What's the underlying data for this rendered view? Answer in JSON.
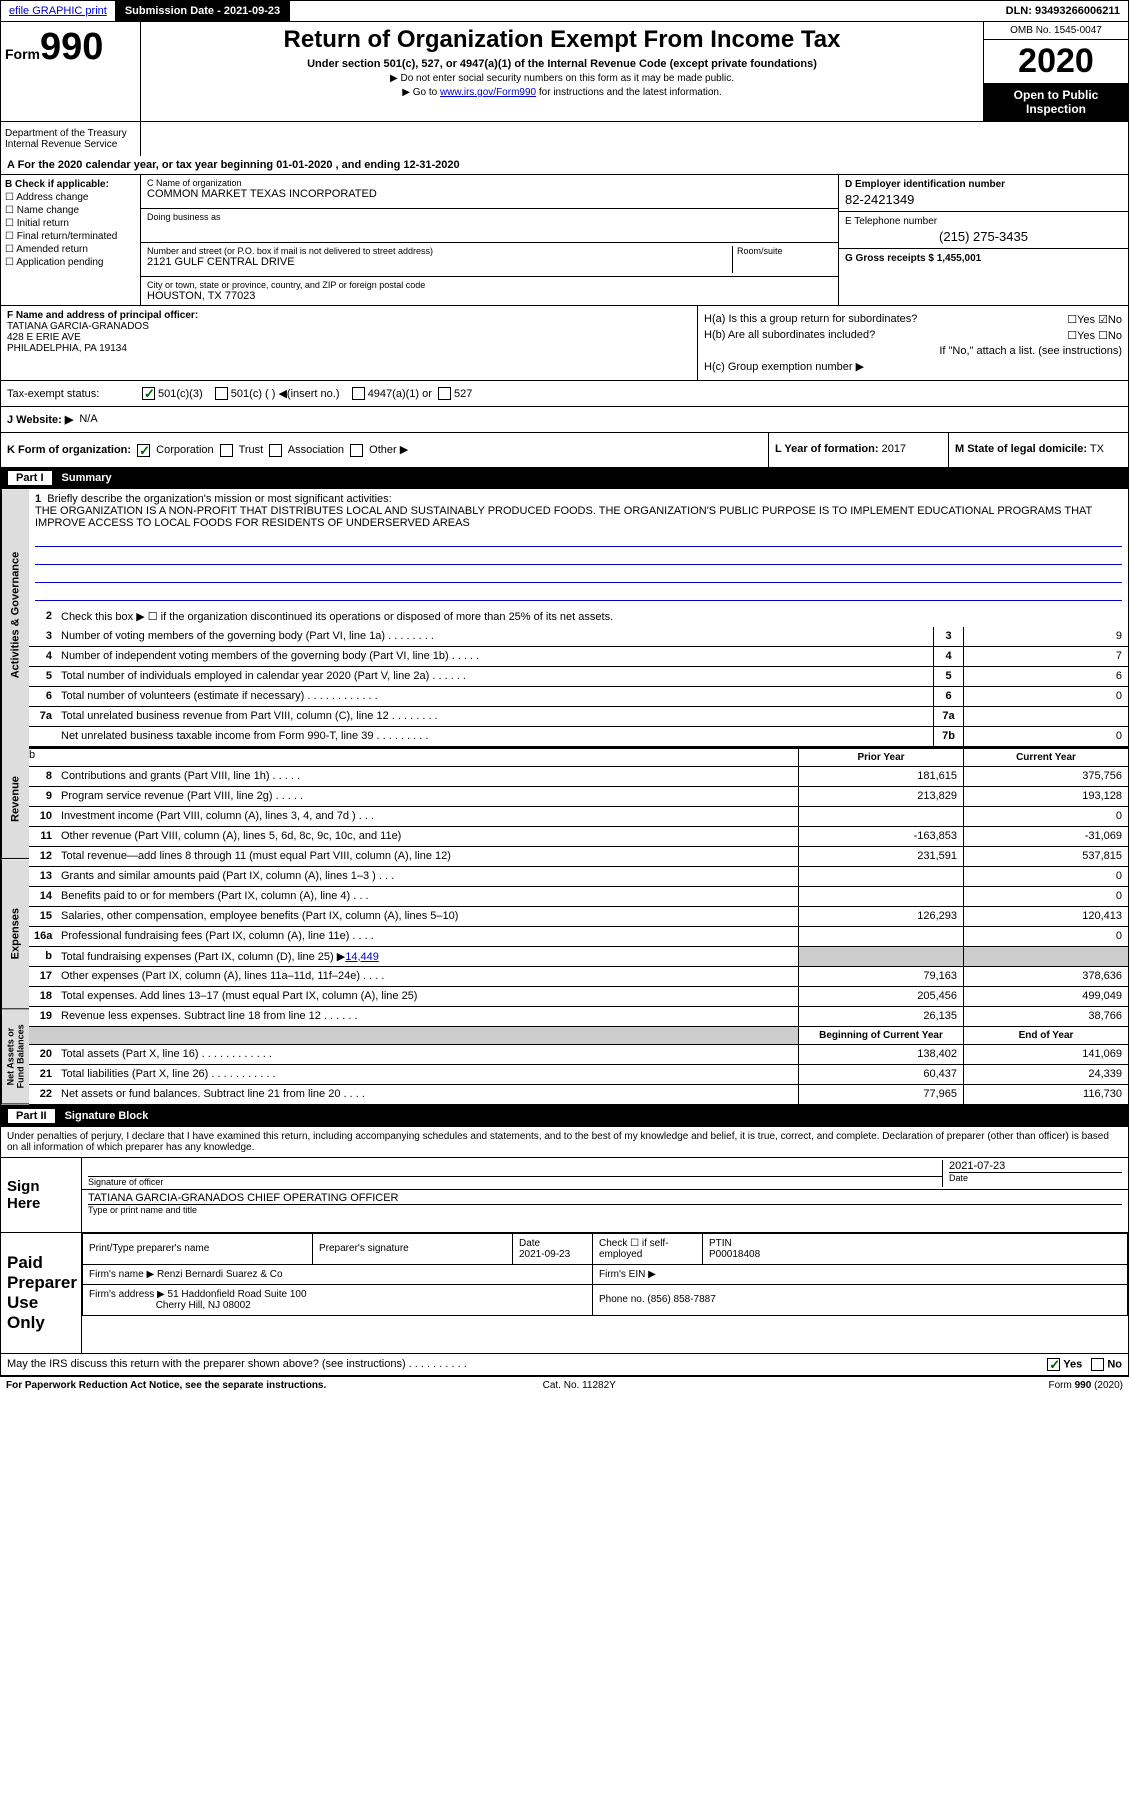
{
  "topbar": {
    "efile_link": "efile GRAPHIC print",
    "submission_label": "Submission Date - 2021-09-23",
    "dln": "DLN: 93493266006211"
  },
  "header": {
    "form_label": "Form",
    "form_number": "990",
    "title": "Return of Organization Exempt From Income Tax",
    "subtitle": "Under section 501(c), 527, or 4947(a)(1) of the Internal Revenue Code (except private foundations)",
    "note1": "▶ Do not enter social security numbers on this form as it may be made public.",
    "note2_pre": "▶ Go to ",
    "note2_link": "www.irs.gov/Form990",
    "note2_post": " for instructions and the latest information.",
    "dept": "Department of the Treasury\nInternal Revenue Service",
    "omb": "OMB No. 1545-0047",
    "year": "2020",
    "open_public": "Open to Public Inspection"
  },
  "section_a": {
    "text": "A For the 2020 calendar year, or tax year beginning 01-01-2020    , and ending 12-31-2020"
  },
  "section_b": {
    "label": "B Check if applicable:",
    "opts": [
      "Address change",
      "Name change",
      "Initial return",
      "Final return/terminated",
      "Amended return",
      "Application pending"
    ]
  },
  "section_c": {
    "name_label": "C Name of organization",
    "org_name": "COMMON MARKET TEXAS INCORPORATED",
    "dba_label": "Doing business as",
    "addr_label": "Number and street (or P.O. box if mail is not delivered to street address)",
    "room_label": "Room/suite",
    "address": "2121 GULF CENTRAL DRIVE",
    "city_label": "City or town, state or province, country, and ZIP or foreign postal code",
    "city": "HOUSTON, TX  77023"
  },
  "section_d": {
    "ein_label": "D Employer identification number",
    "ein": "82-2421349",
    "phone_label": "E Telephone number",
    "phone": "(215) 275-3435",
    "gross_label": "G Gross receipts $",
    "gross": "1,455,001"
  },
  "section_f": {
    "label": "F  Name and address of principal officer:",
    "name": "TATIANA GARCIA-GRANADOS",
    "addr1": "428 E ERIE AVE",
    "addr2": "PHILADELPHIA, PA  19134"
  },
  "section_h": {
    "ha_label": "H(a)  Is this a group return for subordinates?",
    "hb_label": "H(b)  Are all subordinates included?",
    "hb_note": "If \"No,\" attach a list. (see instructions)",
    "hc_label": "H(c)  Group exemption number ▶"
  },
  "tax_exempt": {
    "label": "Tax-exempt status:",
    "opt1": "501(c)(3)",
    "opt2": "501(c) (  ) ◀(insert no.)",
    "opt3": "4947(a)(1) or",
    "opt4": "527"
  },
  "website": {
    "label": "J   Website: ▶",
    "value": "N/A"
  },
  "section_k": {
    "label": "K Form of organization:",
    "corp": "Corporation",
    "trust": "Trust",
    "assoc": "Association",
    "other": "Other ▶",
    "l_label": "L Year of formation:",
    "l_val": "2017",
    "m_label": "M State of legal domicile:",
    "m_val": "TX"
  },
  "part1": {
    "header": "Summary",
    "part_num": "Part I",
    "vert1": "Activities & Governance",
    "vert2": "Revenue",
    "vert3": "Expenses",
    "vert4": "Net Assets or Fund Balances",
    "line1_label": "Briefly describe the organization's mission or most significant activities:",
    "mission": "THE ORGANIZATION IS A NON-PROFIT THAT DISTRIBUTES LOCAL AND SUSTAINABLY PRODUCED FOODS. THE ORGANIZATION'S PUBLIC PURPOSE IS TO IMPLEMENT EDUCATIONAL PROGRAMS THAT IMPROVE ACCESS TO LOCAL FOODS FOR RESIDENTS OF UNDERSERVED AREAS",
    "line2": "Check this box ▶ ☐  if the organization discontinued its operations or disposed of more than 25% of its net assets.",
    "lines_ag": [
      {
        "n": "3",
        "d": "Number of voting members of the governing body (Part VI, line 1a)  .    .    .    .    .    .    .    .",
        "bn": "3",
        "v": "9"
      },
      {
        "n": "4",
        "d": "Number of independent voting members of the governing body (Part VI, line 1b)  .    .    .    .    .",
        "bn": "4",
        "v": "7"
      },
      {
        "n": "5",
        "d": "Total number of individuals employed in calendar year 2020 (Part V, line 2a)  .    .    .    .    .    .",
        "bn": "5",
        "v": "6"
      },
      {
        "n": "6",
        "d": "Total number of volunteers (estimate if necessary)    .    .    .    .    .    .    .    .    .    .    .    .",
        "bn": "6",
        "v": "0"
      },
      {
        "n": "7a",
        "d": "Total unrelated business revenue from Part VIII, column (C), line 12  .    .    .    .    .    .    .    .",
        "bn": "7a",
        "v": ""
      },
      {
        "n": "",
        "d": "Net unrelated business taxable income from Form 990-T, line 39   .    .    .    .    .    .    .    .    .",
        "bn": "7b",
        "v": "0"
      }
    ],
    "prior_year": "Prior Year",
    "current_year": "Current Year",
    "lines_rev": [
      {
        "n": "8",
        "d": "Contributions and grants (Part VIII, line 1h)   .    .    .    .    .",
        "py": "181,615",
        "cy": "375,756"
      },
      {
        "n": "9",
        "d": "Program service revenue (Part VIII, line 2g)   .    .    .    .    .",
        "py": "213,829",
        "cy": "193,128"
      },
      {
        "n": "10",
        "d": "Investment income (Part VIII, column (A), lines 3, 4, and 7d )   .    .    .",
        "py": "",
        "cy": "0"
      },
      {
        "n": "11",
        "d": "Other revenue (Part VIII, column (A), lines 5, 6d, 8c, 9c, 10c, and 11e)",
        "py": "-163,853",
        "cy": "-31,069"
      },
      {
        "n": "12",
        "d": "Total revenue—add lines 8 through 11 (must equal Part VIII, column (A), line 12)",
        "py": "231,591",
        "cy": "537,815"
      }
    ],
    "lines_exp": [
      {
        "n": "13",
        "d": "Grants and similar amounts paid (Part IX, column (A), lines 1–3 )  .    .    .",
        "py": "",
        "cy": "0"
      },
      {
        "n": "14",
        "d": "Benefits paid to or for members (Part IX, column (A), line 4)  .    .    .",
        "py": "",
        "cy": "0"
      },
      {
        "n": "15",
        "d": "Salaries, other compensation, employee benefits (Part IX, column (A), lines 5–10)",
        "py": "126,293",
        "cy": "120,413"
      },
      {
        "n": "16a",
        "d": "Professional fundraising fees (Part IX, column (A), line 11e)  .    .    .    .",
        "py": "",
        "cy": "0"
      }
    ],
    "line16b_label": "Total fundraising expenses (Part IX, column (D), line 25) ▶",
    "line16b_val": "14,449",
    "lines_exp2": [
      {
        "n": "17",
        "d": "Other expenses (Part IX, column (A), lines 11a–11d, 11f–24e)  .    .    .    .",
        "py": "79,163",
        "cy": "378,636"
      },
      {
        "n": "18",
        "d": "Total expenses. Add lines 13–17 (must equal Part IX, column (A), line 25)",
        "py": "205,456",
        "cy": "499,049"
      },
      {
        "n": "19",
        "d": "Revenue less expenses. Subtract line 18 from line 12   .    .    .    .    .    .",
        "py": "26,135",
        "cy": "38,766"
      }
    ],
    "begin_year": "Beginning of Current Year",
    "end_year": "End of Year",
    "lines_net": [
      {
        "n": "20",
        "d": "Total assets (Part X, line 16)  .    .    .    .    .    .    .    .    .    .    .    .",
        "py": "138,402",
        "cy": "141,069"
      },
      {
        "n": "21",
        "d": "Total liabilities (Part X, line 26)  .    .    .    .    .    .    .    .    .    .    .",
        "py": "60,437",
        "cy": "24,339"
      },
      {
        "n": "22",
        "d": "Net assets or fund balances. Subtract line 21 from line 20  .    .    .    .",
        "py": "77,965",
        "cy": "116,730"
      }
    ]
  },
  "part2": {
    "part_num": "Part II",
    "header": "Signature Block",
    "decl": "Under penalties of perjury, I declare that I have examined this return, including accompanying schedules and statements, and to the best of my knowledge and belief, it is true, correct, and complete. Declaration of preparer (other than officer) is based on all information of which preparer has any knowledge."
  },
  "sign_here": {
    "label": "Sign Here",
    "sig_officer_label": "Signature of officer",
    "date_label": "Date",
    "date_val": "2021-07-23",
    "name_title": "TATIANA GARCIA-GRANADOS  CHIEF OPERATING OFFICER",
    "name_title_label": "Type or print name and title"
  },
  "paid_prep": {
    "label": "Paid Preparer Use Only",
    "col1": "Print/Type preparer's name",
    "col2": "Preparer's signature",
    "col3_label": "Date",
    "col3_val": "2021-09-23",
    "col4_label": "Check ☐  if self-employed",
    "col5_label": "PTIN",
    "col5_val": "P00018408",
    "firm_name_label": "Firm's name      ▶",
    "firm_name": "Renzi Bernardi Suarez & Co",
    "firm_ein_label": "Firm's EIN ▶",
    "firm_addr_label": "Firm's address ▶",
    "firm_addr1": "51 Haddonfield Road Suite 100",
    "firm_addr2": "Cherry Hill, NJ  08002",
    "phone_label": "Phone no.",
    "phone": "(856) 858-7887"
  },
  "discuss": {
    "text": "May the IRS discuss this return with the preparer shown above? (see instructions)   .    .    .    .    .    .    .    .    .    .",
    "yes": "Yes",
    "no": "No"
  },
  "footer": {
    "left": "For Paperwork Reduction Act Notice, see the separate instructions.",
    "mid": "Cat. No. 11282Y",
    "right": "Form 990 (2020)"
  }
}
